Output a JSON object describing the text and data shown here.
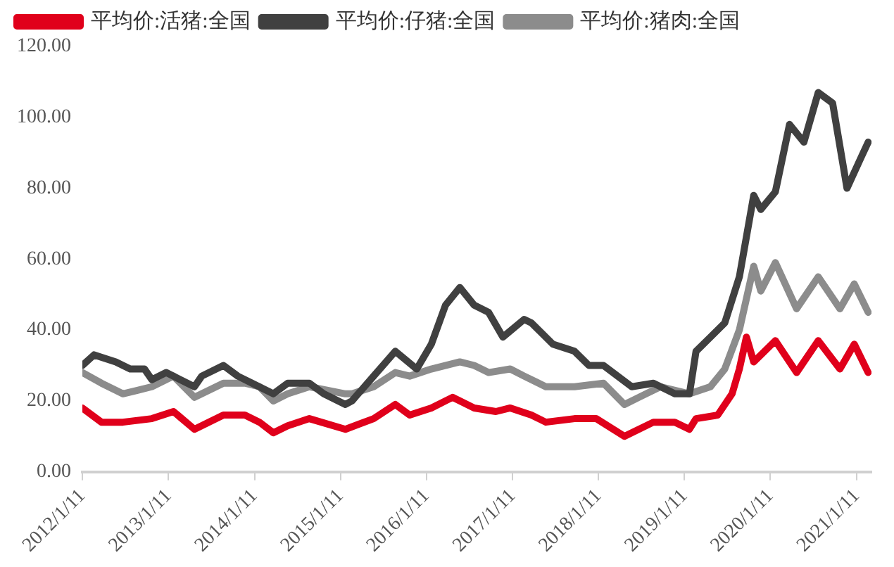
{
  "chart_data": {
    "type": "line",
    "legend": "top",
    "grid": false,
    "marker": "none",
    "line_style": "solid",
    "xlim": [
      "2012-01-11",
      "2021-03-15"
    ],
    "xticks": [
      {
        "value": "2012-01-11",
        "label": "2012/1/11"
      },
      {
        "value": "2013-01-11",
        "label": "2013/1/11"
      },
      {
        "value": "2014-01-11",
        "label": "2014/1/11"
      },
      {
        "value": "2015-01-11",
        "label": "2015/1/11"
      },
      {
        "value": "2016-01-11",
        "label": "2016/1/11"
      },
      {
        "value": "2017-01-11",
        "label": "2017/1/11"
      },
      {
        "value": "2018-01-11",
        "label": "2018/1/11"
      },
      {
        "value": "2019-01-11",
        "label": "2019/1/11"
      },
      {
        "value": "2020-01-11",
        "label": "2020/1/11"
      },
      {
        "value": "2021-01-11",
        "label": "2021/1/11"
      }
    ],
    "ylim": [
      0,
      120
    ],
    "yticks": [
      {
        "value": 0,
        "label": "0.00"
      },
      {
        "value": 20,
        "label": "20.00"
      },
      {
        "value": 40,
        "label": "40.00"
      },
      {
        "value": 60,
        "label": "60.00"
      },
      {
        "value": 80,
        "label": "80.00"
      },
      {
        "value": 100,
        "label": "100.00"
      },
      {
        "value": 120,
        "label": "120.00"
      }
    ],
    "series": [
      {
        "name": "平均价:活猪:全国",
        "color": "#e0001b",
        "x": [
          "2012-01-11",
          "2012-04",
          "2012-07",
          "2012-11",
          "2013-02",
          "2013-05",
          "2013-09",
          "2013-12",
          "2014-02",
          "2014-04",
          "2014-06",
          "2014-09",
          "2015-02",
          "2015-06",
          "2015-09",
          "2015-11",
          "2016-02",
          "2016-04",
          "2016-05",
          "2016-08",
          "2016-11",
          "2017-01",
          "2017-04",
          "2017-06",
          "2017-10",
          "2018-01",
          "2018-05",
          "2018-09",
          "2018-12",
          "2019-02",
          "2019-03",
          "2019-06",
          "2019-08",
          "2019-09",
          "2019-10",
          "2019-11",
          "2020-02",
          "2020-05",
          "2020-08",
          "2020-11",
          "2021-01",
          "2021-03"
        ],
        "values": [
          18,
          14,
          14,
          15,
          17,
          12,
          16,
          16,
          14,
          11,
          13,
          15,
          12,
          15,
          19,
          16,
          18,
          20,
          21,
          18,
          17,
          18,
          16,
          14,
          15,
          15,
          10,
          14,
          14,
          12,
          15,
          16,
          22,
          29,
          38,
          31,
          37,
          28,
          37,
          29,
          36,
          28
        ]
      },
      {
        "name": "平均价:仔猪:全国",
        "color": "#404040",
        "x": [
          "2012-01-11",
          "2012-03",
          "2012-06",
          "2012-08",
          "2012-10",
          "2012-11",
          "2013-01",
          "2013-05",
          "2013-06",
          "2013-09",
          "2013-11",
          "2014-01",
          "2014-04",
          "2014-06",
          "2014-09",
          "2014-11",
          "2015-02",
          "2015-03",
          "2015-06",
          "2015-09",
          "2015-12",
          "2016-02",
          "2016-04",
          "2016-06",
          "2016-08",
          "2016-10",
          "2016-12",
          "2017-03",
          "2017-04",
          "2017-07",
          "2017-10",
          "2017-12",
          "2018-02",
          "2018-06",
          "2018-09",
          "2018-12",
          "2019-02",
          "2019-03",
          "2019-05",
          "2019-07",
          "2019-09",
          "2019-11",
          "2019-12",
          "2020-02",
          "2020-04",
          "2020-06",
          "2020-08",
          "2020-10",
          "2020-12",
          "2021-02",
          "2021-03"
        ],
        "values": [
          30,
          33,
          31,
          29,
          29,
          26,
          28,
          24,
          27,
          30,
          27,
          25,
          22,
          25,
          25,
          22,
          19,
          20,
          27,
          34,
          29,
          36,
          47,
          52,
          47,
          45,
          38,
          43,
          42,
          36,
          34,
          30,
          30,
          24,
          25,
          22,
          22,
          34,
          38,
          42,
          55,
          78,
          74,
          79,
          98,
          93,
          107,
          104,
          80,
          89,
          93
        ]
      },
      {
        "name": "平均价:猪肉:全国",
        "color": "#8c8c8c",
        "x": [
          "2012-01-11",
          "2012-04",
          "2012-07",
          "2012-09",
          "2012-11",
          "2013-02",
          "2013-05",
          "2013-09",
          "2013-12",
          "2014-02",
          "2014-04",
          "2014-06",
          "2014-09",
          "2015-02",
          "2015-03",
          "2015-06",
          "2015-09",
          "2015-11",
          "2016-02",
          "2016-06",
          "2016-08",
          "2016-10",
          "2017-01",
          "2017-03",
          "2017-06",
          "2017-10",
          "2018-02",
          "2018-05",
          "2018-07",
          "2018-10",
          "2019-02",
          "2019-05",
          "2019-07",
          "2019-09",
          "2019-11",
          "2019-12",
          "2020-02",
          "2020-05",
          "2020-08",
          "2020-11",
          "2021-01",
          "2021-03"
        ],
        "values": [
          28,
          25,
          22,
          23,
          24,
          27,
          21,
          25,
          25,
          24,
          20,
          22,
          24,
          22,
          22,
          24,
          28,
          27,
          29,
          31,
          30,
          28,
          29,
          27,
          24,
          24,
          25,
          19,
          21,
          24,
          22,
          24,
          29,
          40,
          58,
          51,
          59,
          46,
          55,
          46,
          53,
          45
        ]
      }
    ]
  }
}
